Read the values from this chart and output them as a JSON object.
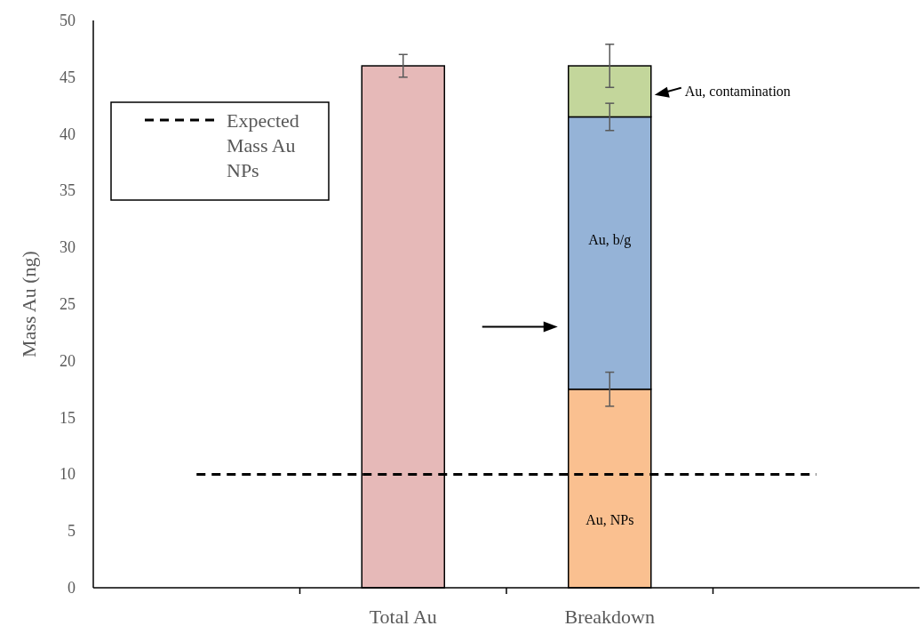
{
  "chart_data": {
    "type": "bar",
    "stacked": true,
    "ylabel": "Mass Au (ng)",
    "categories": [
      null,
      "Total Au",
      "Breakdown",
      null
    ],
    "ylim": [
      0,
      50
    ],
    "yticks": [
      0,
      5,
      10,
      15,
      20,
      25,
      30,
      35,
      40,
      45,
      50
    ],
    "grid": false,
    "legend": "top left",
    "series": [
      {
        "color": "#e6b9b8",
        "values": [
          null,
          46,
          null,
          null
        ],
        "errors": [
          null,
          1,
          null,
          null
        ]
      },
      {
        "name": "Au, NPs",
        "color": "#fac090",
        "values": [
          null,
          null,
          17.5,
          null
        ],
        "errors": [
          null,
          null,
          1.5,
          null
        ]
      },
      {
        "name": "Au, b/g",
        "color": "#95b3d7",
        "values": [
          null,
          null,
          24,
          null
        ],
        "errors": [
          null,
          null,
          1.2,
          null
        ]
      },
      {
        "name": "Au, contamination",
        "color": "#c3d69b",
        "values": [
          null,
          null,
          4.5,
          null
        ],
        "errors": [
          null,
          null,
          1.9,
          null
        ]
      },
      {
        "name": "Expected Mass Au NPs",
        "type": "line",
        "color": "#000000",
        "line_style": "dashed",
        "marker": "none",
        "values": [
          10,
          10,
          10,
          10
        ]
      }
    ]
  }
}
